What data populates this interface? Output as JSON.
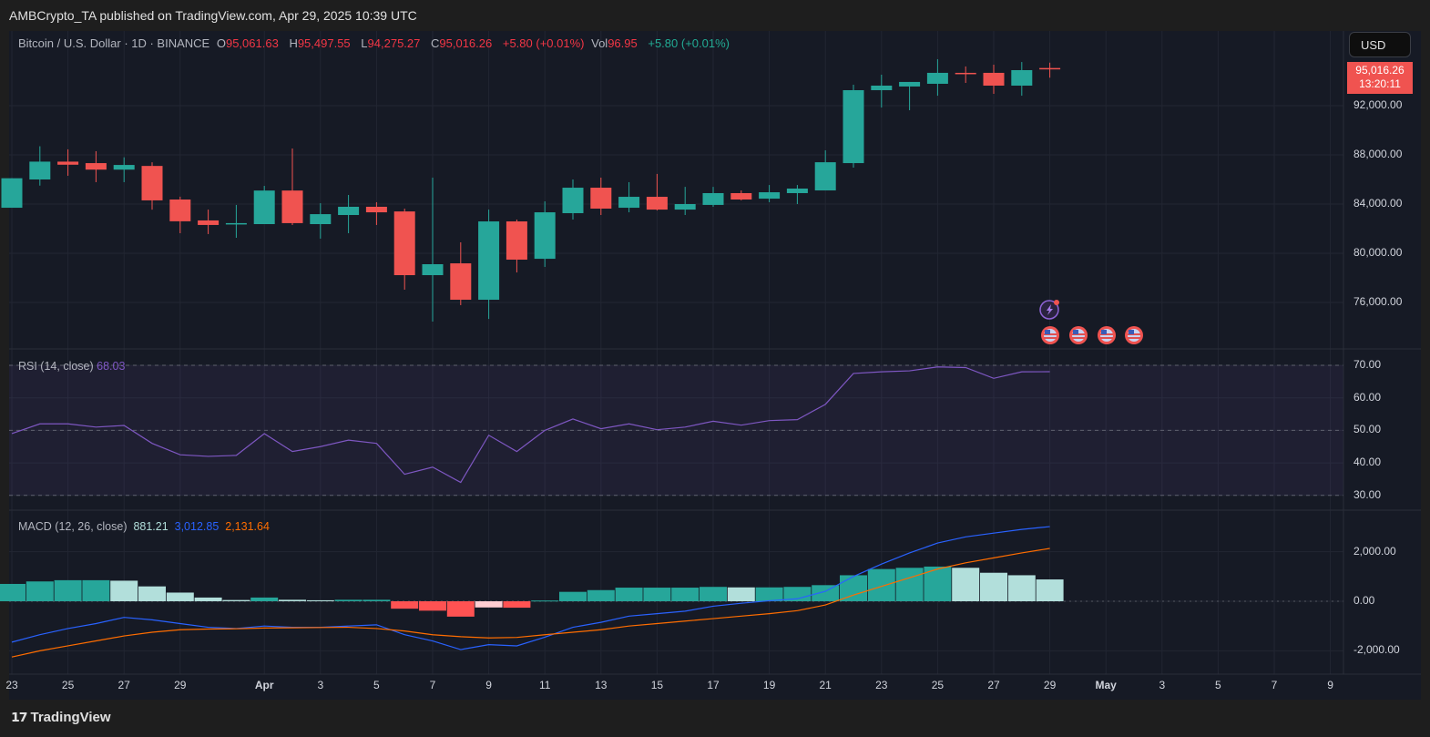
{
  "published": "AMBCrypto_TA published on TradingView.com, Apr 29, 2025 10:39 UTC",
  "legend": {
    "symbol": "Bitcoin / U.S. Dollar · 1D · BINANCE",
    "o_label": "O",
    "o": "95,061.63",
    "h_label": "H",
    "h": "95,497.55",
    "l_label": "L",
    "l": "94,275.27",
    "c_label": "C",
    "c": "95,016.26",
    "change": "+5.80 (+0.01%)",
    "vol_label": "Vol",
    "vol": "96.95",
    "vol_change": "+5.80 (+0.01%)"
  },
  "currency_button": "USD",
  "last_price": {
    "price": "95,016.26",
    "countdown": "13:20:11"
  },
  "rsi": {
    "label": "RSI (14, close)",
    "value": "68.03"
  },
  "macd": {
    "label": "MACD (12, 26, close)",
    "hist": "881.21",
    "macd": "3,012.85",
    "signal": "2,131.64"
  },
  "footer": {
    "brand": "TradingView"
  },
  "colors": {
    "up": "#26a69a",
    "down": "#f05350",
    "rsi": "#7e57c2",
    "macd": "#2962ff",
    "signal": "#ff6d00"
  },
  "chart_data": [
    {
      "type": "candlestick",
      "title": "Bitcoin / U.S. Dollar · 1D · BINANCE",
      "x": [
        "Mar 23",
        "Mar 24",
        "Mar 25",
        "Mar 26",
        "Mar 27",
        "Mar 28",
        "Mar 29",
        "Mar 30",
        "Mar 31",
        "Apr 1",
        "Apr 2",
        "Apr 3",
        "Apr 4",
        "Apr 5",
        "Apr 6",
        "Apr 7",
        "Apr 8",
        "Apr 9",
        "Apr 10",
        "Apr 11",
        "Apr 12",
        "Apr 13",
        "Apr 14",
        "Apr 15",
        "Apr 16",
        "Apr 17",
        "Apr 18",
        "Apr 19",
        "Apr 20",
        "Apr 21",
        "Apr 22",
        "Apr 23",
        "Apr 24",
        "Apr 25",
        "Apr 26",
        "Apr 27",
        "Apr 28",
        "Apr 29"
      ],
      "open": [
        83700,
        86000,
        87450,
        87330,
        86800,
        87100,
        84370,
        82670,
        82370,
        82370,
        85100,
        82370,
        83110,
        83780,
        83400,
        78220,
        79180,
        76220,
        82590,
        79550,
        83260,
        85330,
        83700,
        84590,
        83550,
        83930,
        84890,
        84440,
        84890,
        85110,
        87330,
        93260,
        93560,
        93780,
        94670,
        94670,
        93630,
        95061.63
      ],
      "high": [
        86100,
        88700,
        88450,
        88300,
        87800,
        87400,
        84600,
        83550,
        83930,
        85480,
        88520,
        84070,
        84740,
        84150,
        83630,
        86150,
        80890,
        83550,
        82740,
        84220,
        86000,
        86150,
        85780,
        86450,
        85400,
        85400,
        85110,
        85550,
        85550,
        88370,
        93700,
        94520,
        93930,
        95780,
        95190,
        95330,
        95550,
        95497.55
      ],
      "low": [
        83700,
        85500,
        86300,
        85780,
        85780,
        83550,
        81630,
        81560,
        81260,
        82370,
        82300,
        81190,
        81630,
        82300,
        77040,
        74440,
        75780,
        74660,
        78440,
        78890,
        82740,
        83110,
        83330,
        83480,
        83110,
        83780,
        84300,
        84150,
        84000,
        85110,
        86960,
        91850,
        91630,
        92810,
        93850,
        92960,
        92810,
        94275.27
      ],
      "close": [
        86100,
        87450,
        87200,
        86800,
        87180,
        84300,
        82600,
        82300,
        82450,
        85100,
        82450,
        83180,
        83780,
        83330,
        78220,
        79110,
        76220,
        82590,
        79480,
        83330,
        85330,
        83630,
        84590,
        83550,
        84000,
        84890,
        84370,
        84960,
        85260,
        87400,
        93260,
        93630,
        93930,
        94670,
        94600,
        93630,
        94890,
        95016.26
      ],
      "y_ticks": [
        "92,000.00",
        "88,000.00",
        "84,000.00",
        "80,000.00",
        "76,000.00"
      ],
      "y_tick_values": [
        92000,
        88000,
        84000,
        80000,
        76000
      ],
      "ylim": [
        72222,
        98074
      ]
    },
    {
      "type": "line",
      "title": "RSI (14, close)",
      "values": [
        49,
        52,
        52,
        51,
        51.5,
        46,
        42.5,
        42,
        42.3,
        49,
        43.5,
        45,
        47,
        46,
        36.5,
        38.7,
        34,
        48.5,
        43.5,
        50,
        53.5,
        50.5,
        52,
        50.2,
        51,
        52.8,
        51.6,
        53,
        53.3,
        58,
        67.5,
        68,
        68.3,
        69.5,
        69.3,
        66,
        68,
        68.03
      ],
      "y_ticks": [
        "70.00",
        "60.00",
        "50.00",
        "40.00",
        "30.00"
      ],
      "y_tick_values": [
        70,
        60,
        50,
        40,
        30
      ],
      "bands": [
        30,
        50,
        70
      ],
      "ylim": [
        20.3,
        75
      ]
    },
    {
      "type": "bar+line",
      "title": "MACD (12, 26, close)",
      "histogram": [
        700,
        800,
        850,
        850,
        830,
        600,
        350,
        150,
        50,
        150,
        60,
        40,
        60,
        60,
        -300,
        -380,
        -620,
        -250,
        -260,
        30,
        380,
        450,
        550,
        550,
        550,
        580,
        560,
        560,
        580,
        650,
        1050,
        1300,
        1350,
        1400,
        1350,
        1150,
        1050,
        881.21
      ],
      "macd": [
        -1650,
        -1350,
        -1100,
        -900,
        -650,
        -750,
        -900,
        -1050,
        -1100,
        -1000,
        -1050,
        -1050,
        -1000,
        -950,
        -1350,
        -1600,
        -1950,
        -1750,
        -1800,
        -1450,
        -1050,
        -850,
        -600,
        -500,
        -400,
        -200,
        -80,
        20,
        100,
        400,
        1000,
        1500,
        1950,
        2350,
        2600,
        2750,
        2900,
        3012.85
      ],
      "signal": [
        -2250,
        -2000,
        -1800,
        -1600,
        -1400,
        -1250,
        -1150,
        -1120,
        -1110,
        -1080,
        -1070,
        -1060,
        -1050,
        -1100,
        -1200,
        -1350,
        -1430,
        -1480,
        -1460,
        -1350,
        -1250,
        -1150,
        -1000,
        -900,
        -800,
        -700,
        -600,
        -500,
        -380,
        -150,
        250,
        600,
        950,
        1300,
        1550,
        1750,
        1950,
        2131.64
      ],
      "y_ticks": [
        "2,000.00",
        "0.00",
        "-2,000.00"
      ],
      "y_tick_values": [
        2000,
        0,
        -2000
      ]
    }
  ],
  "x_axis": {
    "labels": [
      "23",
      "25",
      "27",
      "29",
      "Apr",
      "3",
      "5",
      "7",
      "9",
      "11",
      "13",
      "15",
      "17",
      "19",
      "21",
      "23",
      "25",
      "27",
      "29",
      "May",
      "3",
      "5",
      "7",
      "9"
    ],
    "day_index": [
      0,
      2,
      4,
      6,
      9,
      11,
      13,
      15,
      17,
      19,
      21,
      23,
      25,
      27,
      29,
      31,
      33,
      35,
      37,
      39,
      41,
      43,
      45,
      47
    ]
  }
}
